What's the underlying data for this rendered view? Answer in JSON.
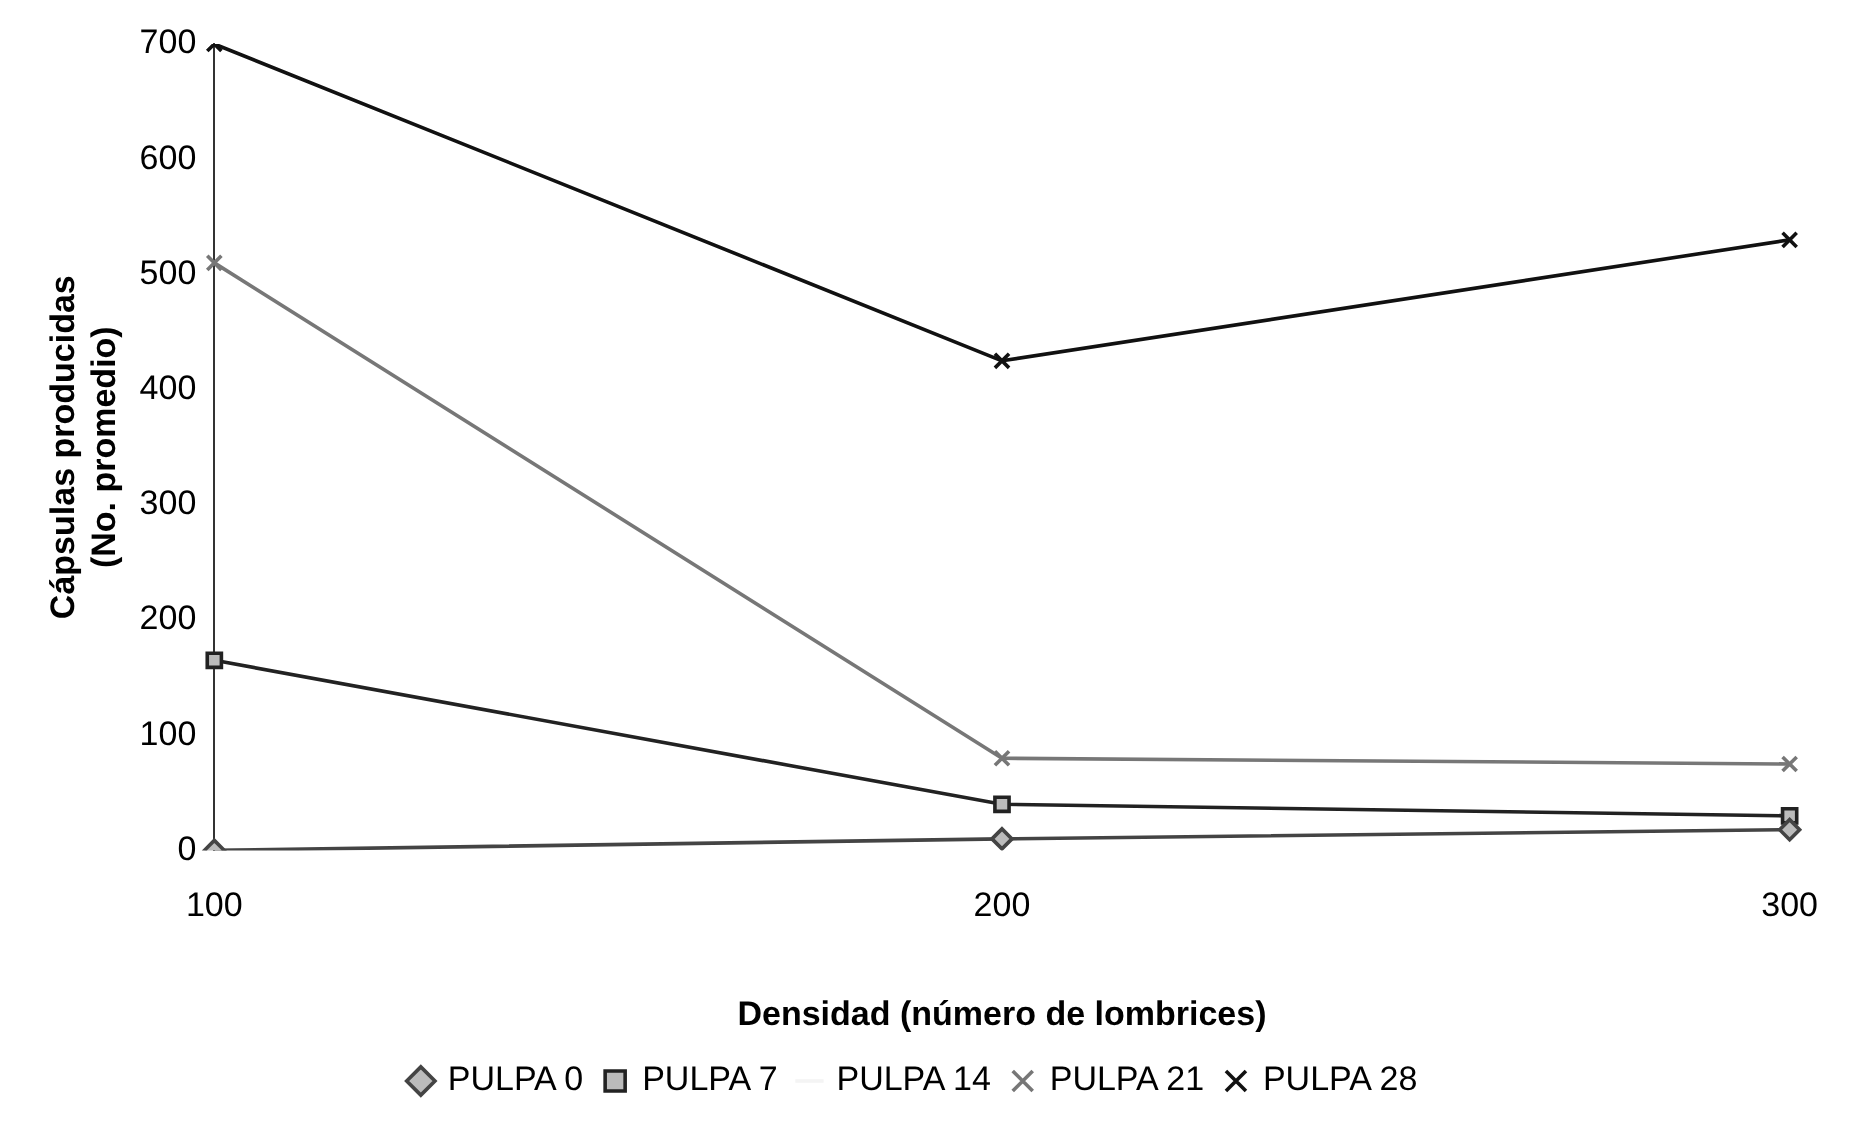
{
  "chart_data": {
    "type": "line",
    "xlabel": "Densidad (número de lombrices)",
    "ylabel": "Cápsulas producidas\n(No. promedio)",
    "categories": [
      "100",
      "200",
      "300"
    ],
    "series": [
      {
        "name": "PULPA 0",
        "color": "#444444",
        "marker": "diamond",
        "values": [
          0,
          10,
          18
        ]
      },
      {
        "name": "PULPA 7",
        "color": "#222222",
        "marker": "square",
        "values": [
          165,
          40,
          30
        ]
      },
      {
        "name": "PULPA 14",
        "color": "#f4f4f4",
        "marker": "none",
        "values": [
          null,
          null,
          null
        ]
      },
      {
        "name": "PULPA 21",
        "color": "#777777",
        "marker": "cross",
        "values": [
          510,
          80,
          75
        ]
      },
      {
        "name": "PULPA 28",
        "color": "#111111",
        "marker": "cross",
        "values": [
          700,
          425,
          530
        ]
      }
    ],
    "ylim": [
      0,
      700
    ],
    "yticks": [
      0,
      100,
      200,
      300,
      400,
      500,
      600,
      700
    ],
    "grid": false,
    "legend": "bottom",
    "line_style": "solid"
  }
}
